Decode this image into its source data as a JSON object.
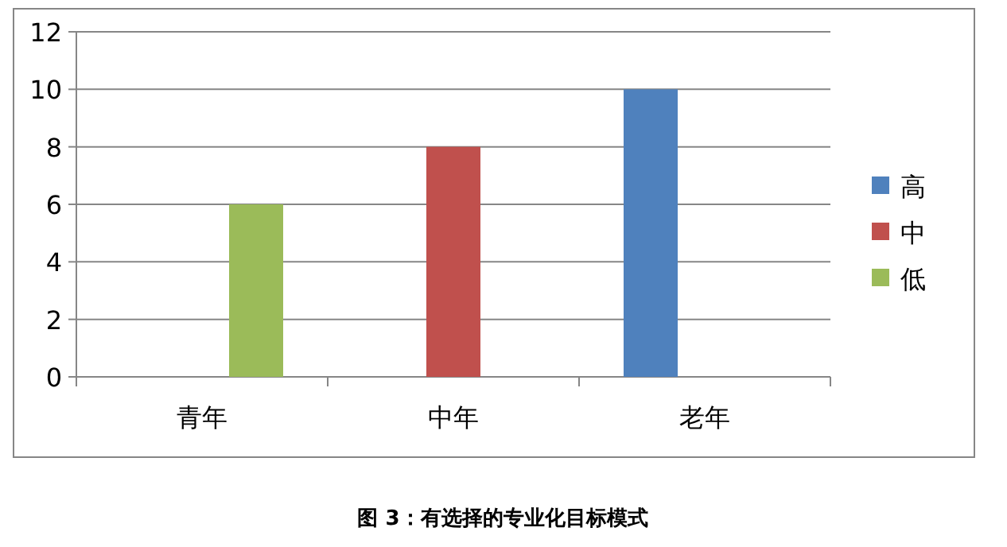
{
  "chart_data": {
    "type": "bar",
    "title": "图 3：有选择的专业化目标模式",
    "categories": [
      "青年",
      "中年",
      "老年"
    ],
    "series": [
      {
        "name": "高",
        "color": "#4f81bd",
        "values": [
          null,
          null,
          10
        ]
      },
      {
        "name": "中",
        "color": "#c0504d",
        "values": [
          null,
          8,
          null
        ]
      },
      {
        "name": "低",
        "color": "#9bbb59",
        "values": [
          6,
          null,
          null
        ]
      }
    ],
    "ylim": [
      0,
      12
    ],
    "yticks": [
      0,
      2,
      4,
      6,
      8,
      10,
      12
    ],
    "grid": "y",
    "legend": "right"
  }
}
